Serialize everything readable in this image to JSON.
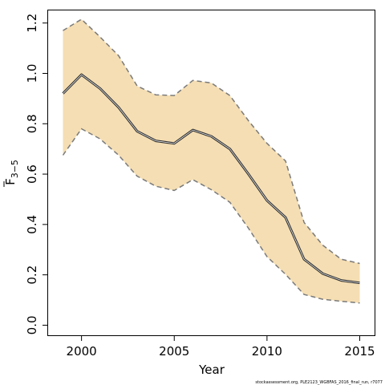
{
  "chart_data": {
    "type": "line",
    "xlabel": "Year",
    "ylabel": {
      "base": "F",
      "subscript": "3−5"
    },
    "xlim": [
      1998.2,
      2015.8
    ],
    "ylim": [
      -0.04,
      1.25
    ],
    "x_ticks": [
      2000,
      2005,
      2010,
      2015
    ],
    "y_ticks": [
      0.0,
      0.2,
      0.4,
      0.6,
      0.8,
      1.0,
      1.2
    ],
    "y_tick_labels": [
      "0.0",
      "0.2",
      "0.4",
      "0.6",
      "0.8",
      "1.0",
      "1.2"
    ],
    "grid": false,
    "legend": "none",
    "colors": {
      "band": "#f5deb3",
      "estimate": "#333333",
      "bounds": "#7a7a7a"
    },
    "x": [
      1999,
      2000,
      2001,
      2002,
      2003,
      2004,
      2005,
      2006,
      2007,
      2008,
      2009,
      2010,
      2011,
      2012,
      2013,
      2014,
      2015
    ],
    "series": [
      {
        "role": "estimate",
        "values": [
          0.92,
          0.995,
          0.94,
          0.865,
          0.77,
          0.732,
          0.722,
          0.775,
          0.75,
          0.7,
          0.6,
          0.495,
          0.428,
          0.262,
          0.205,
          0.178,
          0.168
        ]
      },
      {
        "role": "upper",
        "values": [
          1.17,
          1.215,
          1.145,
          1.07,
          0.95,
          0.915,
          0.912,
          0.972,
          0.962,
          0.912,
          0.812,
          0.722,
          0.652,
          0.408,
          0.318,
          0.262,
          0.245
        ]
      },
      {
        "role": "lower",
        "values": [
          0.675,
          0.78,
          0.74,
          0.675,
          0.592,
          0.552,
          0.535,
          0.578,
          0.538,
          0.488,
          0.385,
          0.272,
          0.202,
          0.122,
          0.103,
          0.095,
          0.088
        ]
      }
    ]
  },
  "footer": {
    "credit": "stockassessment.org,  PLE2123_WGBFAS_2016_final_run,  r7077"
  }
}
